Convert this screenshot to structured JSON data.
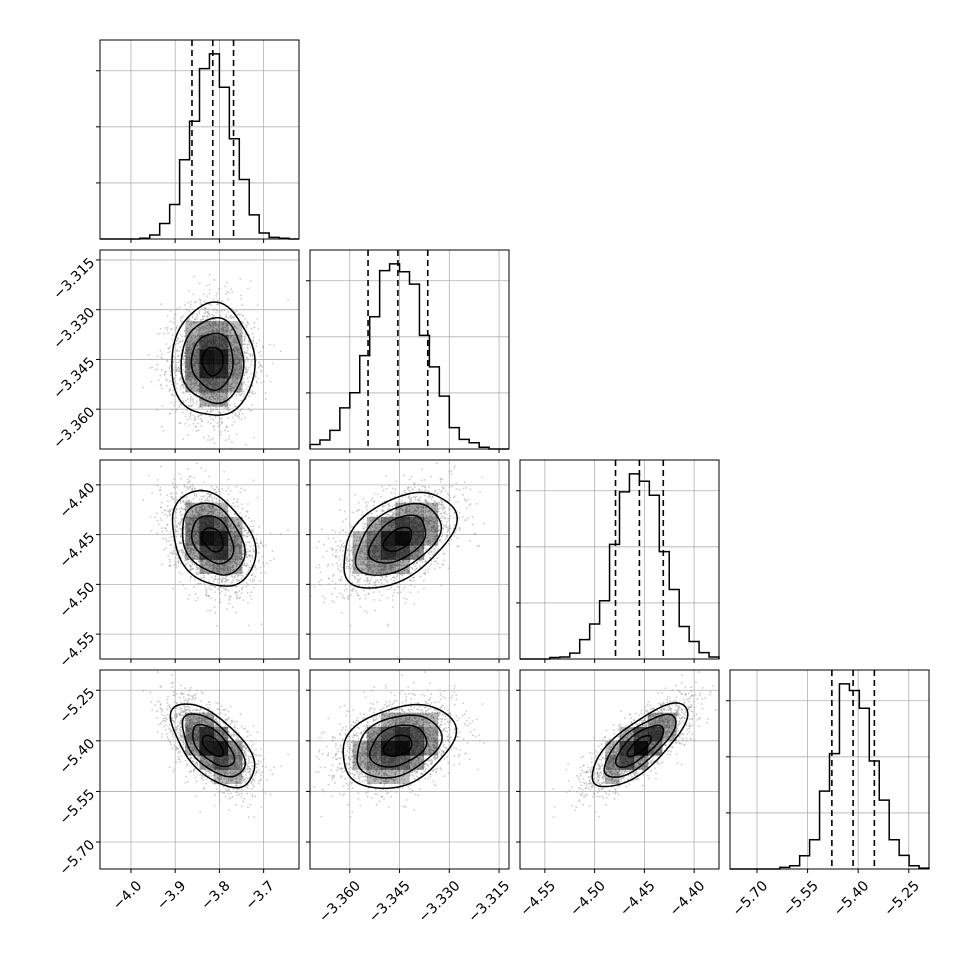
{
  "chart_data": {
    "type": "corner",
    "parameters": [
      {
        "mean": -3.815,
        "sd": 0.047,
        "range": [
          -4.07,
          -3.62
        ],
        "ticks": [
          -4.0,
          -3.9,
          -3.8,
          -3.7
        ],
        "tick_labels": [
          "−4.0",
          "−3.9",
          "−3.8",
          "−3.7"
        ],
        "quantiles": [
          -3.862,
          -3.815,
          -3.768
        ]
      },
      {
        "mean": -3.3455,
        "sd": 0.0085,
        "range": [
          -3.372,
          -3.312
        ],
        "ticks": [
          -3.36,
          -3.345,
          -3.33,
          -3.315
        ],
        "tick_labels": [
          "−3.360",
          "−3.345",
          "−3.330",
          "−3.315"
        ],
        "quantiles": [
          -3.3545,
          -3.3455,
          -3.3365
        ]
      },
      {
        "mean": -4.455,
        "sd": 0.024,
        "range": [
          -4.575,
          -4.375
        ],
        "ticks": [
          -4.55,
          -4.5,
          -4.45,
          -4.4
        ],
        "tick_labels": [
          "−4.55",
          "−4.50",
          "−4.45",
          "−4.40"
        ],
        "quantiles": [
          -4.479,
          -4.455,
          -4.431
        ]
      },
      {
        "mean": -5.415,
        "sd": 0.062,
        "range": [
          -5.78,
          -5.19
        ],
        "ticks": [
          -5.7,
          -5.55,
          -5.4,
          -5.25
        ],
        "tick_labels": [
          "−5.70",
          "−5.55",
          "−5.40",
          "−5.25"
        ],
        "quantiles": [
          -5.478,
          -5.415,
          -5.352
        ]
      }
    ],
    "correlations": [
      [
        1.0,
        0.0,
        -0.3,
        -0.6
      ],
      [
        0.0,
        1.0,
        0.45,
        0.3
      ],
      [
        -0.3,
        0.45,
        1.0,
        0.75
      ],
      [
        -0.6,
        0.3,
        0.75,
        1.0
      ]
    ],
    "histogram_bins": 20,
    "contour_levels_sigma": [
      0.5,
      1.0,
      1.5,
      2.0
    ],
    "quantile_line_style": "dashed",
    "grid": true,
    "colors": {
      "line": "#000000",
      "grid": "#b0b0b0",
      "scatter": "#9a9a9a",
      "density": "#000000"
    }
  }
}
